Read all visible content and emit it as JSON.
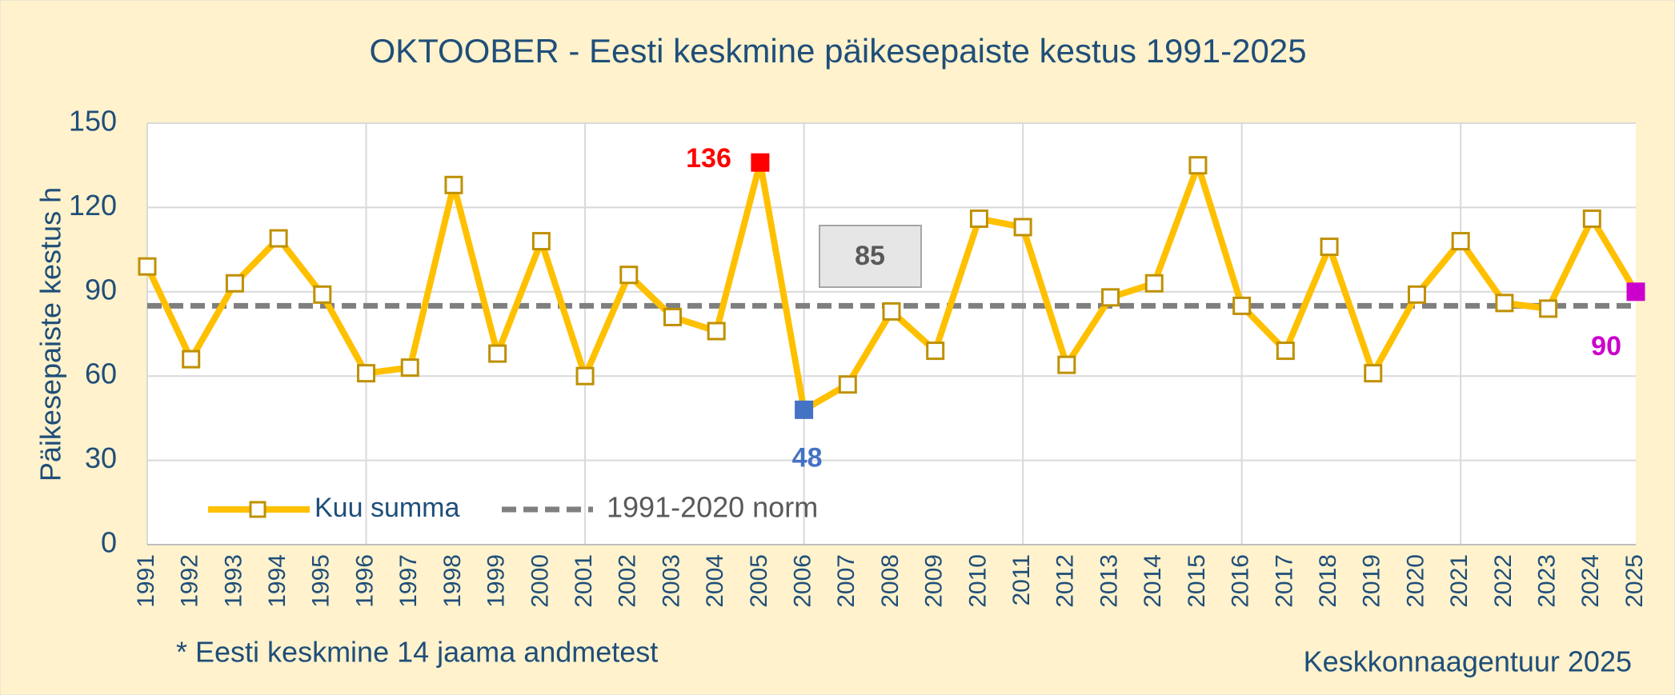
{
  "chart_data": {
    "type": "line",
    "title": "OKTOOBER - Eesti keskmine päikesepaiste kestus 1991-2025",
    "ylabel": "Päikesepaiste kestus h",
    "categories": [
      "1991",
      "1992",
      "1993",
      "1994",
      "1995",
      "1996",
      "1997",
      "1998",
      "1999",
      "2000",
      "2001",
      "2002",
      "2003",
      "2004",
      "2005",
      "2006",
      "2007",
      "2008",
      "2009",
      "2010",
      "2011",
      "2012",
      "2013",
      "2014",
      "2015",
      "2016",
      "2017",
      "2018",
      "2019",
      "2020",
      "2021",
      "2022",
      "2023",
      "2024",
      "2025"
    ],
    "series": [
      {
        "name": "Kuu summa",
        "color": "#ffc000",
        "marker_edge": "#bf9000",
        "values": [
          99,
          66,
          93,
          109,
          89,
          61,
          63,
          128,
          68,
          108,
          60,
          96,
          81,
          76,
          136,
          48,
          57,
          83,
          69,
          116,
          113,
          64,
          88,
          93,
          135,
          85,
          69,
          106,
          61,
          89,
          108,
          86,
          84,
          116,
          90
        ]
      }
    ],
    "norm": {
      "name": "1991-2020 norm",
      "value": 85,
      "color": "#7f7f7f"
    },
    "highlights": [
      {
        "index": 14,
        "color": "#ff0000"
      },
      {
        "index": 15,
        "color": "#4472c4"
      },
      {
        "index": 34,
        "color": "#cc00cc"
      }
    ],
    "ylim": [
      0,
      150
    ],
    "yticks": [
      0,
      30,
      60,
      90,
      120,
      150
    ],
    "grid": true,
    "footnote": "* Eesti keskmine 14 jaama andmetest",
    "source": "Keskkonnaagentuur 2025"
  }
}
